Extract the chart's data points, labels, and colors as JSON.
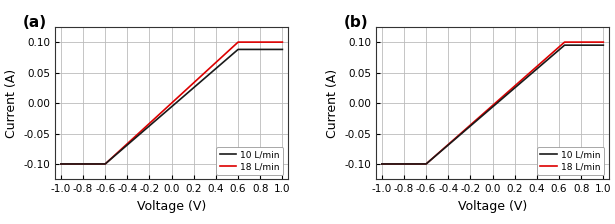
{
  "panel_a": {
    "label": "(a)",
    "black_10": {
      "x": [
        -1.0,
        -0.6,
        0.6,
        1.0
      ],
      "y": [
        -0.1,
        -0.1,
        0.088,
        0.088
      ],
      "color": "#1a1a1a",
      "label": "10 L/min",
      "lw": 1.2
    },
    "red_18": {
      "x": [
        -1.0,
        -0.6,
        0.6,
        1.0
      ],
      "y": [
        -0.1,
        -0.1,
        0.1,
        0.1
      ],
      "color": "#dd0000",
      "label": "18 L/min",
      "lw": 1.2
    }
  },
  "panel_b": {
    "label": "(b)",
    "black_10": {
      "x": [
        -1.0,
        -0.6,
        0.65,
        1.0
      ],
      "y": [
        -0.1,
        -0.1,
        0.095,
        0.095
      ],
      "color": "#1a1a1a",
      "label": "10 L/min",
      "lw": 1.2
    },
    "red_18": {
      "x": [
        -1.0,
        -0.6,
        0.65,
        1.0
      ],
      "y": [
        -0.1,
        -0.1,
        0.1,
        0.1
      ],
      "color": "#dd0000",
      "label": "18 L/min",
      "lw": 1.2
    }
  },
  "xlim": [
    -1.05,
    1.05
  ],
  "ylim": [
    -0.125,
    0.125
  ],
  "xticks": [
    -1.0,
    -0.8,
    -0.6,
    -0.4,
    -0.2,
    0.0,
    0.2,
    0.4,
    0.6,
    0.8,
    1.0
  ],
  "yticks": [
    -0.1,
    -0.05,
    0.0,
    0.05,
    0.1
  ],
  "xlabel": "Voltage (V)",
  "ylabel": "Current (A)",
  "grid_color": "#bbbbbb",
  "grid_lw": 0.6,
  "bg_color": "#ffffff",
  "legend_loc": "lower right",
  "tick_fontsize": 7.5,
  "label_fontsize": 9,
  "panel_label_fontsize": 11
}
